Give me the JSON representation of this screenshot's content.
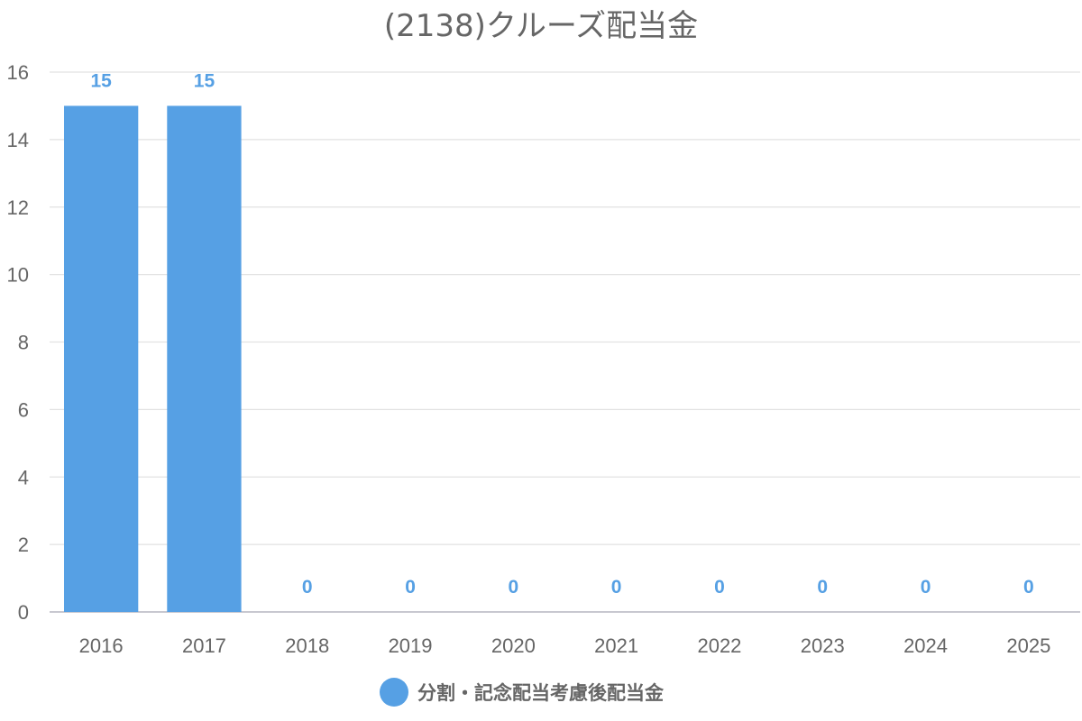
{
  "chart_data": {
    "type": "bar",
    "title": "(2138)クルーズ配当金",
    "categories": [
      "2016",
      "2017",
      "2018",
      "2019",
      "2020",
      "2021",
      "2022",
      "2023",
      "2024",
      "2025"
    ],
    "series": [
      {
        "name": "分割・記念配当考慮後配当金",
        "values": [
          15,
          15,
          0,
          0,
          0,
          0,
          0,
          0,
          0,
          0
        ],
        "color": "#56a0e4"
      }
    ],
    "xlabel": "",
    "ylabel": "",
    "ylim": [
      0,
      16
    ],
    "yticks": [
      0,
      2,
      4,
      6,
      8,
      10,
      12,
      14,
      16
    ],
    "grid": true,
    "legend_position": "bottom",
    "data_labels": true
  }
}
